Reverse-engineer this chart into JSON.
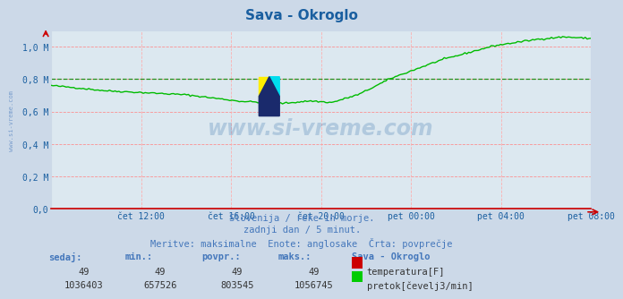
{
  "title": "Sava - Okroglo",
  "title_color": "#1a5fa0",
  "bg_color": "#ccd9e8",
  "plot_bg_color": "#dce8f0",
  "grid_color_h": "#ff8888",
  "grid_color_v": "#ffaaaa",
  "ylabel_color": "#1a5fa0",
  "xlabel_color": "#1a5fa0",
  "avg_line_color": "#008800",
  "temp_line_color": "#cc0000",
  "flow_line_color": "#00bb00",
  "watermark_text": "www.si-vreme.com",
  "watermark_color": "#1a5fa0",
  "watermark_alpha": 0.22,
  "subtitle1": "Slovenija / reke in morje.",
  "subtitle2": "zadnji dan / 5 minut.",
  "subtitle3": "Meritve: maksimalne  Enote: anglosake  Črta: povprečje",
  "footer_color": "#4477bb",
  "ylim": [
    0.0,
    1.1
  ],
  "yticks": [
    0.0,
    0.2,
    0.4,
    0.6,
    0.8,
    1.0
  ],
  "ytick_labels": [
    "0,0",
    "0,2 M",
    "0,4 M",
    "0,6 M",
    "0,8 M",
    "1,0 M"
  ],
  "xtick_labels": [
    "čet 12:00",
    "čet 16:00",
    "čet 20:00",
    "pet 00:00",
    "pet 04:00",
    "pet 08:00"
  ],
  "n_points": 288,
  "flow_avg": 803545,
  "flow_min": 657526,
  "flow_max": 1056745,
  "flow_current": 1036403,
  "temp_current": 49,
  "temp_min": 49,
  "temp_avg": 49,
  "temp_max": 49,
  "arrow_color": "#cc0000",
  "avg_dashed_value": 0.803545,
  "spine_color": "#cc0000"
}
